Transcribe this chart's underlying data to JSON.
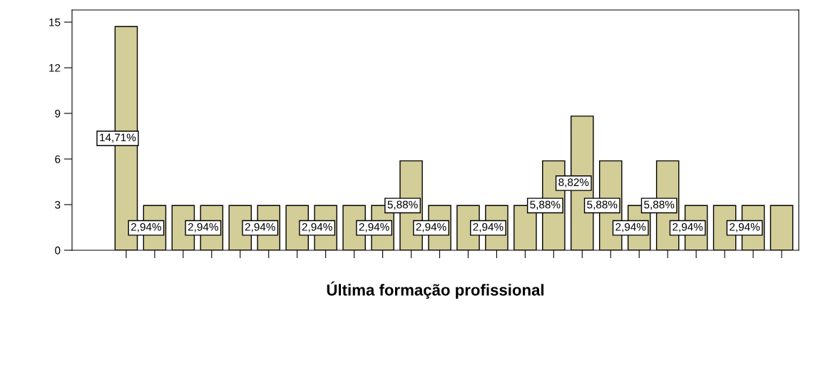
{
  "chart_data": {
    "type": "bar",
    "xlabel": "Última formação profissional",
    "categories": [
      null,
      null,
      null,
      null,
      null,
      null,
      null,
      null,
      null,
      null,
      null,
      null,
      null,
      null,
      null,
      null,
      null,
      null,
      null,
      null,
      null,
      null,
      null,
      null
    ],
    "values": [
      14.71,
      2.94,
      2.94,
      2.94,
      2.94,
      2.94,
      2.94,
      2.94,
      2.94,
      2.94,
      5.88,
      2.94,
      2.94,
      2.94,
      2.94,
      5.88,
      8.82,
      5.88,
      2.94,
      5.88,
      2.94,
      2.94,
      2.94,
      2.94
    ],
    "value_labels": [
      "14,71%",
      "2,94%",
      null,
      "2,94%",
      null,
      "2,94%",
      null,
      "2,94%",
      null,
      "2,94%",
      "5,88%",
      "2,94%",
      null,
      "2,94%",
      null,
      "5,88%",
      "8,82%",
      "5,88%",
      "2,94%",
      "5,88%",
      "2,94%",
      null,
      "2,94%",
      null
    ],
    "color": "#d3cd98",
    "ylim": [
      0,
      15.8
    ],
    "yticks": [
      0,
      3,
      6,
      9,
      12,
      15
    ],
    "grid": false
  }
}
